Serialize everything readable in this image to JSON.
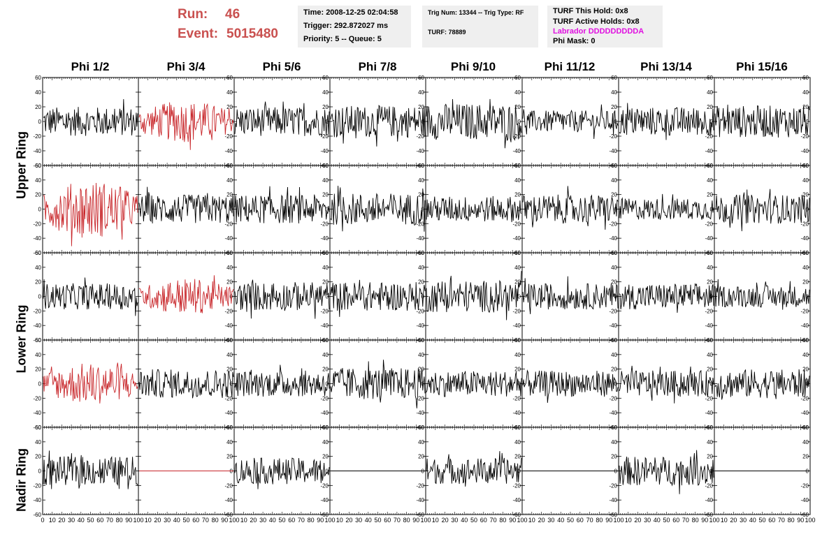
{
  "header": {
    "run_label": "Run:",
    "run_value": "46",
    "event_label": "Event:",
    "event_value": "5015480"
  },
  "time_box": {
    "time": "Time: 2008-12-25 02:04:58",
    "trigger": "Trigger: 292.872027 ms",
    "priority": "Priority: 5 -- Queue: 5"
  },
  "trig_box": {
    "trig": "Trig Num: 13344 -- Trig Type: RF",
    "turf": "TURF: 78889"
  },
  "turf_box": {
    "this_hold": "TURF This Hold: 0x8",
    "active_holds": "TURF Active Holds: 0x8",
    "labrador": "Labrador DDDDDDDDDA",
    "phi_mask": "Phi Mask: 0"
  },
  "columns": [
    "Phi 1/2",
    "Phi 3/4",
    "Phi 5/6",
    "Phi 7/8",
    "Phi 9/10",
    "Phi 11/12",
    "Phi 13/14",
    "Phi 15/16"
  ],
  "rings": [
    "Upper Ring",
    "Lower Ring",
    "Nadir Ring"
  ],
  "y_ticks": [
    "60",
    "40",
    "20",
    "0",
    "-20",
    "-40",
    "-60"
  ],
  "x_ticks": [
    "0",
    "10",
    "20",
    "30",
    "40",
    "50",
    "60",
    "70",
    "80",
    "90",
    "100"
  ],
  "colors": {
    "normal_trace": "#000000",
    "triggered_trace": "#c8262a",
    "title_red": "#c9504f",
    "magenta": "#e010e0"
  },
  "triggered_panels": [
    [
      0,
      1
    ],
    [
      1,
      0
    ],
    [
      2,
      1
    ],
    [
      3,
      0
    ],
    [
      4,
      1
    ]
  ],
  "flat_panels": [
    [
      4,
      1
    ],
    [
      4,
      3
    ],
    [
      4,
      5
    ],
    [
      4,
      7
    ]
  ],
  "chart_data": {
    "type": "line",
    "xlim": [
      0,
      100
    ],
    "ylim": [
      -60,
      60
    ],
    "rows": 5,
    "cols": 8,
    "note_series": "128-sample waveform per panel; amplitudes approx as shown",
    "panel_amplitudes": [
      [
        20,
        25,
        20,
        22,
        25,
        15,
        20,
        22
      ],
      [
        35,
        20,
        20,
        22,
        18,
        20,
        15,
        20
      ],
      [
        18,
        22,
        20,
        20,
        22,
        18,
        18,
        15
      ],
      [
        25,
        20,
        18,
        22,
        18,
        18,
        18,
        20
      ],
      [
        20,
        0,
        18,
        0,
        18,
        0,
        20,
        0
      ]
    ]
  }
}
